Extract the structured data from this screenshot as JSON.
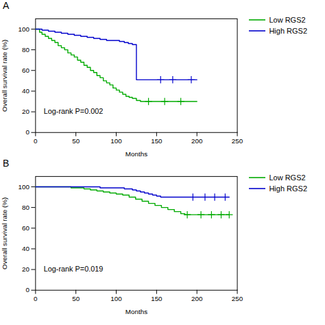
{
  "chart_data": [
    {
      "type": "step",
      "title": "A",
      "xlabel": "Months",
      "ylabel": "Overall survival rate (%)",
      "annotation": "Log-rank P=0.002",
      "xlim": [
        0,
        250
      ],
      "ylim": [
        0,
        110
      ],
      "xticks": [
        0,
        50,
        100,
        150,
        200,
        250
      ],
      "yticks": [
        0,
        20,
        40,
        60,
        80,
        100
      ],
      "grid": false,
      "legend": "right",
      "series": [
        {
          "name": "Low RGS2",
          "color": "#00aa00",
          "marker": "plus",
          "x": [
            0,
            5,
            8,
            12,
            16,
            20,
            24,
            28,
            32,
            36,
            40,
            44,
            48,
            52,
            56,
            60,
            64,
            68,
            72,
            76,
            80,
            84,
            88,
            92,
            96,
            100,
            104,
            108,
            112,
            116,
            120,
            125,
            130,
            135,
            140,
            145,
            150,
            155,
            160,
            165,
            170,
            175,
            180,
            185,
            190,
            195,
            200
          ],
          "values": [
            100,
            97,
            95,
            93,
            91,
            89,
            87,
            84,
            82,
            80,
            77,
            75,
            73,
            70,
            68,
            65,
            63,
            60,
            58,
            55,
            53,
            50,
            48,
            46,
            43,
            41,
            39,
            37,
            35,
            34,
            33,
            31,
            30,
            30,
            30,
            30,
            30,
            30,
            30,
            30,
            30,
            30,
            30,
            30,
            30,
            30,
            30
          ],
          "censors_x": [
            140,
            160,
            180
          ],
          "censors_y": [
            30,
            30,
            30
          ]
        },
        {
          "name": "High RGS2",
          "color": "#0000cc",
          "marker": "plus",
          "x": [
            0,
            8,
            16,
            24,
            32,
            40,
            48,
            56,
            64,
            72,
            80,
            88,
            96,
            104,
            110,
            115,
            120,
            125,
            130,
            140,
            150,
            160,
            170,
            180,
            190,
            195,
            200
          ],
          "values": [
            100,
            99,
            98,
            97,
            96,
            95,
            94,
            93,
            92,
            91,
            90,
            89,
            89,
            88,
            87,
            86,
            85,
            51,
            51,
            51,
            51,
            51,
            51,
            51,
            51,
            51,
            51
          ],
          "censors_x": [
            155,
            170,
            193
          ],
          "censors_y": [
            51,
            51,
            51
          ]
        }
      ]
    },
    {
      "type": "step",
      "title": "B",
      "xlabel": "Months",
      "ylabel": "Overall survival rate (%)",
      "annotation": "Log-rank P=0.019",
      "xlim": [
        0,
        250
      ],
      "ylim": [
        0,
        110
      ],
      "xticks": [
        0,
        50,
        100,
        150,
        200,
        250
      ],
      "yticks": [
        0,
        20,
        40,
        60,
        80,
        100
      ],
      "grid": false,
      "legend": "right",
      "series": [
        {
          "name": "Low RGS2",
          "color": "#00aa00",
          "marker": "plus",
          "x": [
            0,
            10,
            20,
            28,
            36,
            44,
            52,
            60,
            68,
            76,
            84,
            92,
            100,
            108,
            116,
            124,
            132,
            140,
            148,
            156,
            164,
            172,
            180,
            185,
            190,
            195,
            200,
            205,
            210,
            215,
            220,
            225,
            230,
            235,
            240
          ],
          "values": [
            100,
            100,
            100,
            100,
            100,
            99,
            99,
            98,
            97,
            96,
            95,
            94,
            93,
            92,
            90,
            88,
            86,
            84,
            82,
            80,
            78,
            76,
            74,
            73,
            73,
            73,
            73,
            73,
            73,
            73,
            73,
            73,
            73,
            73,
            73
          ],
          "censors_x": [
            188,
            205,
            218,
            230,
            240
          ],
          "censors_y": [
            73,
            73,
            73,
            73,
            73
          ]
        },
        {
          "name": "High RGS2",
          "color": "#0000cc",
          "marker": "plus",
          "x": [
            0,
            10,
            20,
            30,
            40,
            50,
            60,
            70,
            80,
            90,
            100,
            105,
            110,
            115,
            120,
            125,
            130,
            135,
            140,
            145,
            150,
            155,
            160,
            165,
            170,
            175,
            180,
            185,
            190,
            195,
            200,
            205,
            210,
            215,
            220,
            225,
            230,
            235,
            240
          ],
          "values": [
            100,
            100,
            100,
            100,
            100,
            100,
            100,
            100,
            99,
            99,
            99,
            99,
            98,
            98,
            97,
            96,
            95,
            94,
            93,
            92,
            91,
            90,
            90,
            90,
            90,
            90,
            90,
            90,
            90,
            90,
            90,
            90,
            90,
            90,
            90,
            90,
            90,
            90,
            90
          ],
          "censors_x": [
            195,
            210,
            222,
            235
          ],
          "censors_y": [
            90,
            90,
            90,
            90
          ]
        }
      ]
    }
  ]
}
